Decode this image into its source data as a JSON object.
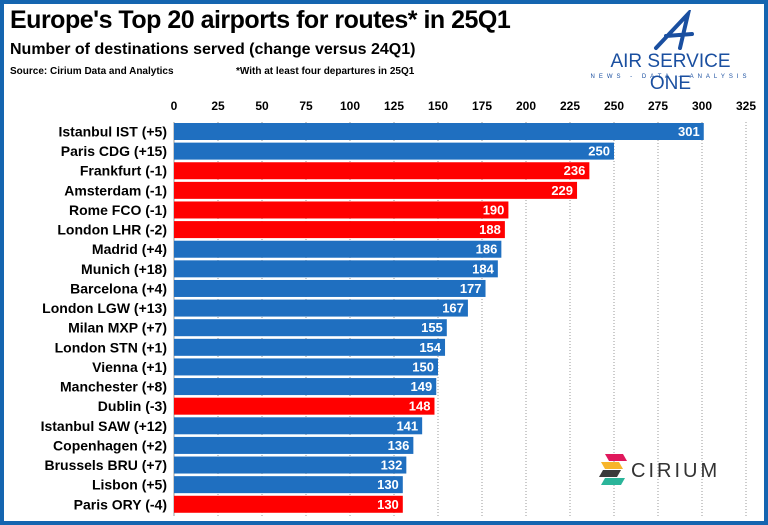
{
  "header": {
    "title": "Europe's Top 20 airports for routes* in 25Q1",
    "subtitle": "Number of destinations served (change versus 24Q1)",
    "source": "Source: Cirium Data and Analytics",
    "footnote": "*With at least four departures in 25Q1"
  },
  "logos": {
    "air_service_one": "AIR SERVICE ONE",
    "air_service_one_tagline": "NEWS - DATA - ANALYSIS",
    "cirium": "CIRIUM"
  },
  "colors": {
    "increase": "#1f6fc0",
    "decrease": "#ff0000",
    "frame": "#1565b0"
  },
  "chart_data": {
    "type": "bar",
    "orientation": "horizontal",
    "title": "Europe's Top 20 airports for routes* in 25Q1",
    "xlim": [
      0,
      325
    ],
    "xticks": [
      0,
      25,
      50,
      75,
      100,
      125,
      150,
      175,
      200,
      225,
      250,
      275,
      300,
      325
    ],
    "grid": true,
    "xaxis_position": "top",
    "categories": [
      "Istanbul IST (+5)",
      "Paris CDG (+15)",
      "Frankfurt (-1)",
      "Amsterdam (-1)",
      "Rome FCO (-1)",
      "London LHR (-2)",
      "Madrid (+4)",
      "Munich (+18)",
      "Barcelona (+4)",
      "London LGW (+13)",
      "Milan MXP (+7)",
      "London STN (+1)",
      "Vienna (+1)",
      "Manchester (+8)",
      "Dublin (-3)",
      "Istanbul SAW (+12)",
      "Copenhagen (+2)",
      "Brussels BRU (+7)",
      "Lisbon (+5)",
      "Paris ORY (-4)"
    ],
    "values": [
      301,
      250,
      236,
      229,
      190,
      188,
      186,
      184,
      177,
      167,
      155,
      154,
      150,
      149,
      148,
      141,
      136,
      132,
      130,
      130
    ],
    "change_direction": [
      "up",
      "up",
      "down",
      "down",
      "down",
      "down",
      "up",
      "up",
      "up",
      "up",
      "up",
      "up",
      "up",
      "up",
      "down",
      "up",
      "up",
      "up",
      "up",
      "down"
    ]
  }
}
